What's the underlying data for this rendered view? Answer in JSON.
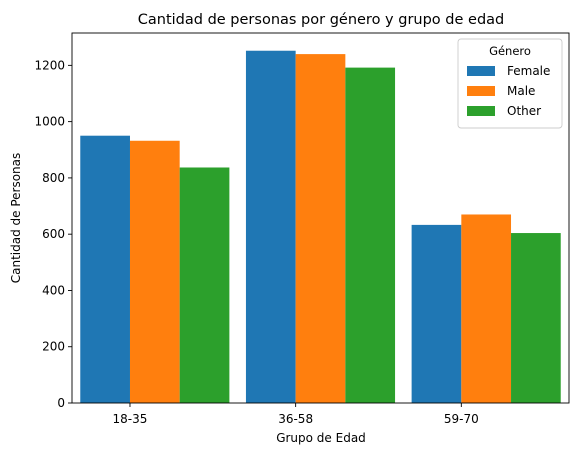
{
  "chart_data": {
    "type": "bar",
    "title": "Cantidad de personas por género y grupo de edad",
    "xlabel": "Grupo de Edad",
    "ylabel": "Cantidad de Personas",
    "categories": [
      "18-35",
      "36-58",
      "59-70"
    ],
    "series": [
      {
        "name": "Female",
        "color": "#1f77b4",
        "values": [
          950,
          1252,
          633
        ]
      },
      {
        "name": "Male",
        "color": "#ff7f0e",
        "values": [
          932,
          1240,
          670
        ]
      },
      {
        "name": "Other",
        "color": "#2ca02c",
        "values": [
          837,
          1192,
          604
        ]
      }
    ],
    "ylim": [
      0,
      1315
    ],
    "yticks": [
      0,
      200,
      400,
      600,
      800,
      1000,
      1200
    ],
    "legend": {
      "title": "Género",
      "placement": "top-right"
    },
    "grid": false
  }
}
